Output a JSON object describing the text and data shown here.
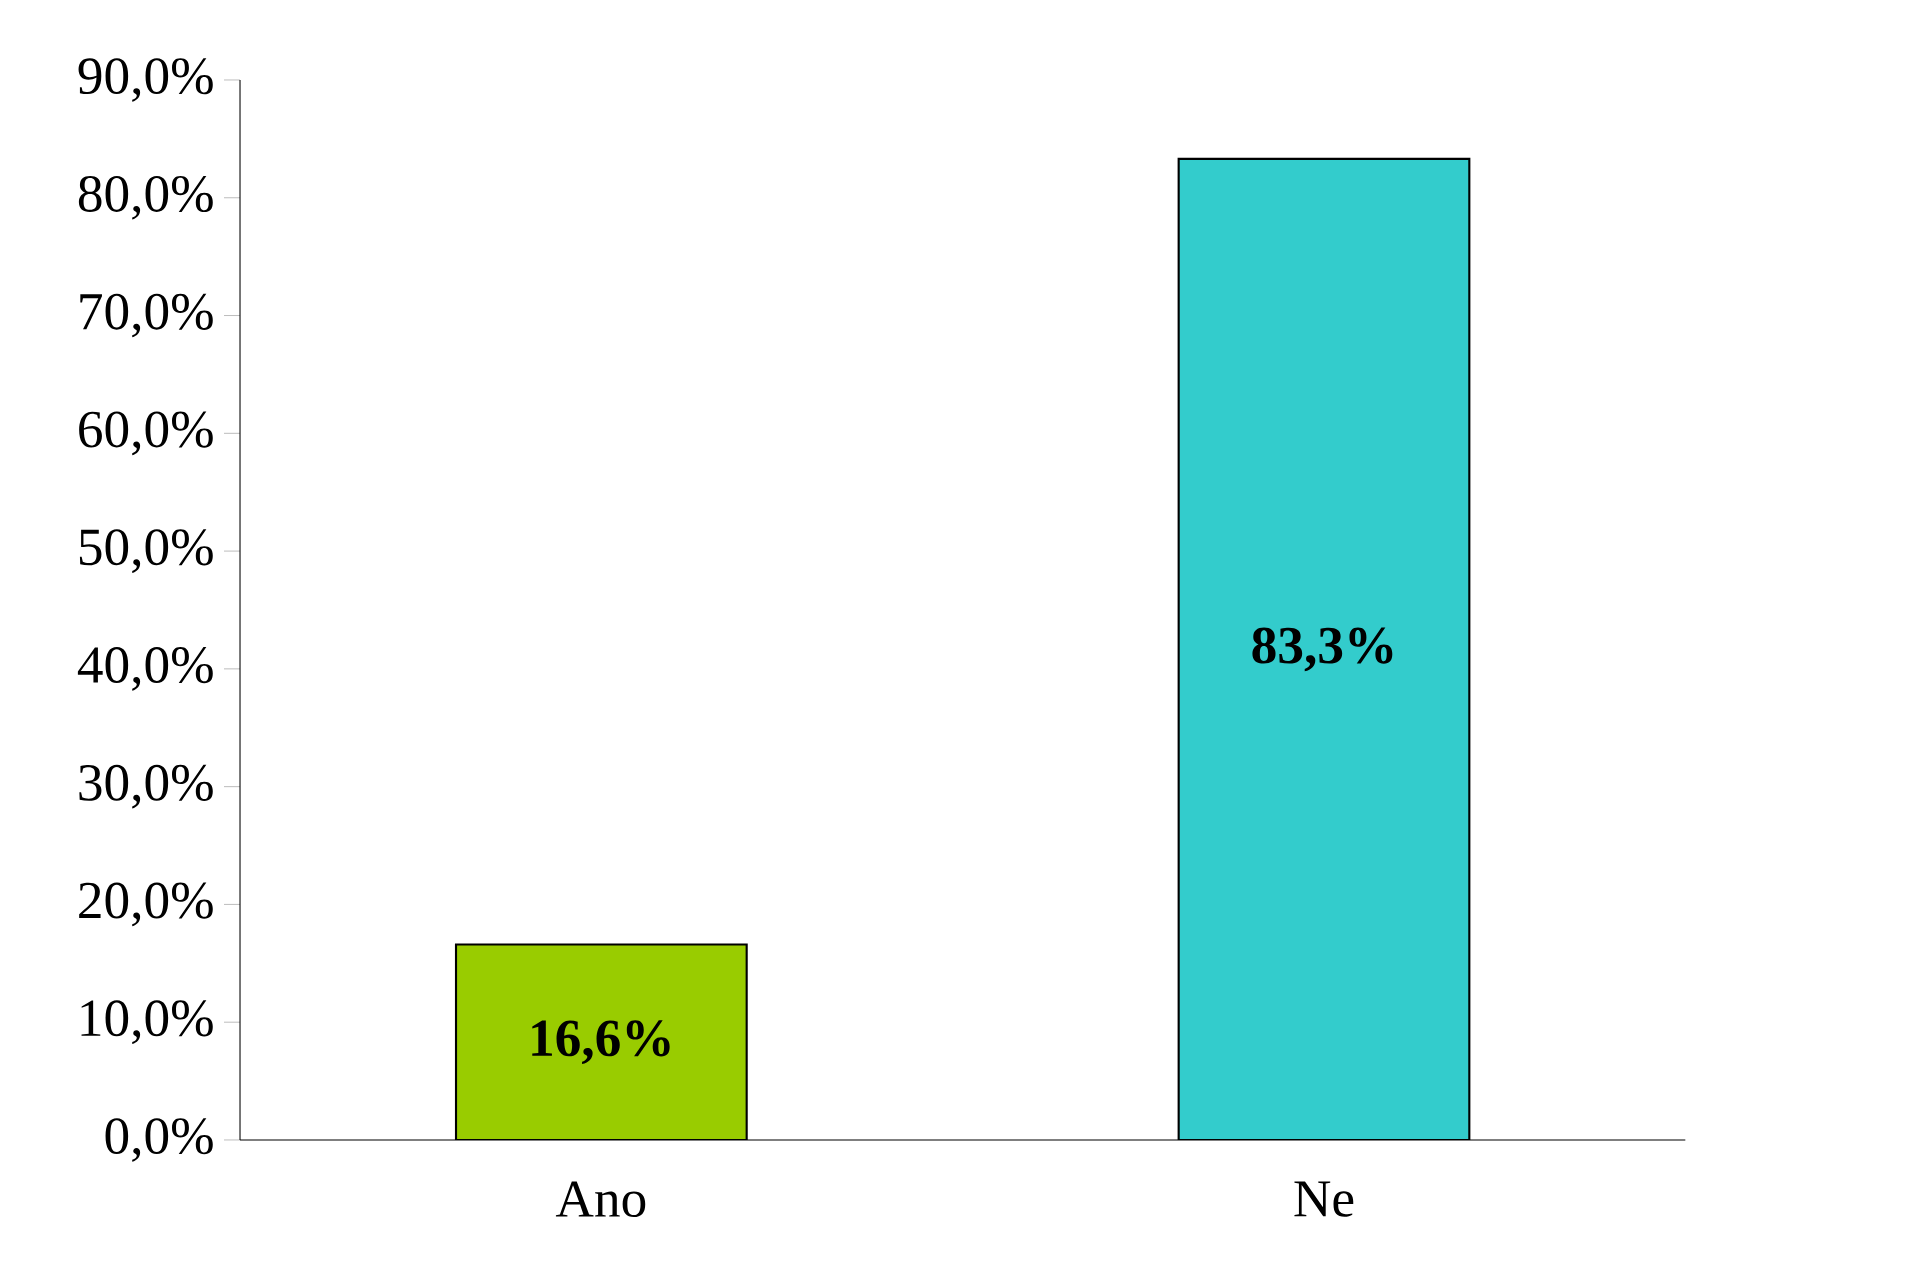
{
  "chart_data": {
    "type": "bar",
    "categories": [
      "Ano",
      "Ne"
    ],
    "values": [
      16.6,
      83.3
    ],
    "colors": [
      "#99cc00",
      "#33cccc"
    ],
    "value_labels": [
      "16,6%",
      "83,3%"
    ],
    "ylim": [
      0,
      90
    ],
    "yticks": [
      {
        "value": 0,
        "label": "0,0%"
      },
      {
        "value": 10,
        "label": "10,0%"
      },
      {
        "value": 20,
        "label": "20,0%"
      },
      {
        "value": 30,
        "label": "30,0%"
      },
      {
        "value": 40,
        "label": "40,0%"
      },
      {
        "value": 50,
        "label": "50,0%"
      },
      {
        "value": 60,
        "label": "60,0%"
      },
      {
        "value": 70,
        "label": "70,0%"
      },
      {
        "value": 80,
        "label": "80,0%"
      },
      {
        "value": 90,
        "label": "90,0%"
      }
    ]
  }
}
